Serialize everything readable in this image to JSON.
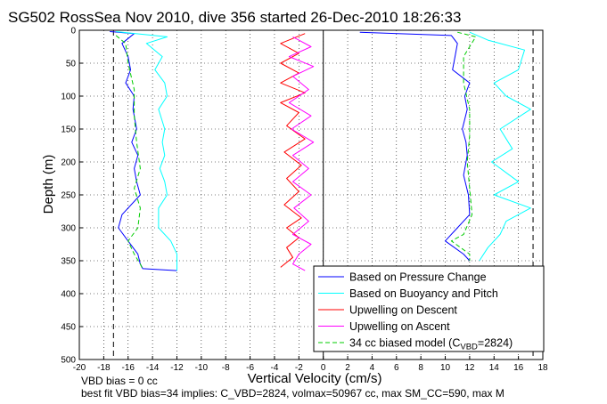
{
  "chart_data": {
    "type": "line",
    "title": "SG502 RossSea Nov 2010, dive 356 started 26-Dec-2010 18:26:33",
    "xlabel": "Vertical Velocity (cm/s)",
    "ylabel": "Depth (m)",
    "xlim": [
      -20,
      18
    ],
    "ylim": [
      0,
      500
    ],
    "y_reversed": true,
    "xticks": [
      -20,
      -18,
      -16,
      -14,
      -12,
      -10,
      -8,
      -6,
      -4,
      -2,
      0,
      2,
      4,
      6,
      8,
      10,
      12,
      14,
      16,
      18
    ],
    "yticks": [
      0,
      50,
      100,
      150,
      200,
      250,
      300,
      350,
      400,
      450,
      500
    ],
    "grid": true,
    "legend_position": "bottom-right",
    "reference_lines": [
      {
        "x": -17.2,
        "style": "dashed",
        "color": "#000000"
      },
      {
        "x": 17.2,
        "style": "dashed",
        "color": "#000000"
      },
      {
        "x": 0,
        "style": "solid",
        "color": "#000000"
      }
    ],
    "series": [
      {
        "name": "Based on Pressure Change",
        "color": "#0000ff",
        "style": "solid",
        "segments": [
          {
            "x": [
              -17.5,
              -15.5,
              -16.5,
              -16.0,
              -15.8,
              -16.2,
              -15.5,
              -15.6,
              -15.3,
              -15.7,
              -15.2,
              -15.5,
              -15.3,
              -15.0,
              -16.5,
              -16.8,
              -16.0,
              -15.2,
              -15.0,
              -14.8,
              -12.0
            ],
            "y": [
              2,
              5,
              20,
              40,
              60,
              80,
              100,
              120,
              150,
              170,
              190,
              210,
              230,
              250,
              280,
              300,
              320,
              340,
              355,
              362,
              365
            ]
          },
          {
            "x": [
              3.0,
              10.5,
              11.0,
              10.8,
              10.6,
              12.0,
              11.6,
              11.8,
              11.4,
              11.7,
              11.8,
              11.5,
              11.9,
              12.0,
              11.0,
              10.0,
              11.5,
              12.0
            ],
            "y": [
              3,
              8,
              20,
              40,
              60,
              80,
              100,
              120,
              150,
              170,
              190,
              220,
              250,
              280,
              300,
              320,
              340,
              350
            ]
          }
        ]
      },
      {
        "name": "Based on Buoyancy and Pitch",
        "color": "#00ffff",
        "style": "solid",
        "segments": [
          {
            "x": [
              -17.0,
              -12.8,
              -14.5,
              -13.2,
              -13.8,
              -13.0,
              -12.8,
              -13.5,
              -13.0,
              -13.2,
              -13.0,
              -13.4,
              -13.0,
              -12.8,
              -13.5,
              -13.5,
              -12.5,
              -12.0,
              -12.0
            ],
            "y": [
              2,
              10,
              20,
              40,
              60,
              80,
              100,
              120,
              150,
              170,
              190,
              210,
              230,
              250,
              270,
              300,
              320,
              340,
              365
            ]
          },
          {
            "x": [
              12.0,
              13.5,
              16.5,
              16.0,
              14.0,
              15.0,
              17.0,
              14.5,
              15.5,
              13.8,
              16.0,
              14.0,
              17.0,
              15.0,
              14.5,
              13.5,
              12.8
            ],
            "y": [
              3,
              15,
              30,
              60,
              80,
              100,
              120,
              150,
              180,
              200,
              230,
              250,
              270,
              290,
              310,
              330,
              350
            ]
          }
        ]
      },
      {
        "name": "Upwelling on Descent",
        "color": "#ff0000",
        "style": "solid",
        "segments": [
          {
            "x": [
              -1.5,
              -3.5,
              -2.0,
              -3.5,
              -2.0,
              -3.5,
              -1.5,
              -3.5,
              -2.0,
              -3.0,
              -1.5,
              -3.2,
              -1.8,
              -3.0,
              -2.0,
              -3.2,
              -1.8,
              -3.0,
              -2.0,
              -3.0,
              -2.5,
              -3.5
            ],
            "y": [
              5,
              20,
              35,
              50,
              65,
              80,
              95,
              110,
              125,
              145,
              165,
              185,
              205,
              225,
              245,
              265,
              285,
              300,
              315,
              330,
              345,
              360
            ]
          }
        ]
      },
      {
        "name": "Upwelling on Ascent",
        "color": "#ff00ff",
        "style": "solid",
        "segments": [
          {
            "x": [
              -2.5,
              -1.0,
              -2.8,
              -0.8,
              -2.5,
              -1.2,
              -2.8,
              -1.0,
              -2.6,
              -0.8,
              -2.5,
              -1.2,
              -2.5,
              -1.0,
              -2.4,
              -1.2,
              -2.5,
              -1.0,
              -2.0,
              -2.5,
              -1.5
            ],
            "y": [
              10,
              25,
              40,
              55,
              70,
              90,
              110,
              130,
              150,
              170,
              190,
              210,
              230,
              250,
              270,
              290,
              310,
              325,
              340,
              355,
              365
            ]
          }
        ]
      },
      {
        "name": "34 cc biased model (C_VBD=2824)",
        "color": "#00cc00",
        "style": "dashed",
        "segments": [
          {
            "x": [
              -17.0,
              -16.2,
              -16.0,
              -15.5,
              -15.5,
              -15.3,
              -15.0,
              -15.5,
              -15.0,
              -15.2,
              -16.0,
              -15.5,
              -15.0,
              -14.8
            ],
            "y": [
              8,
              20,
              50,
              90,
              130,
              170,
              210,
              240,
              270,
              300,
              320,
              340,
              355,
              363
            ]
          },
          {
            "x": [
              11.0,
              12.5,
              11.5,
              11.5,
              12.0,
              12.0,
              11.8,
              12.0,
              12.2,
              11.5,
              10.5,
              12.0,
              12.0
            ],
            "y": [
              3,
              10,
              40,
              80,
              120,
              160,
              200,
              240,
              280,
              310,
              320,
              340,
              350
            ]
          }
        ]
      }
    ]
  },
  "notes": {
    "line1": "VBD bias = 0 cc",
    "line2": "best fit VBD bias=34 implies: C_VBD=2824, volmax=50967 cc, max SM_CC=590, max M"
  }
}
